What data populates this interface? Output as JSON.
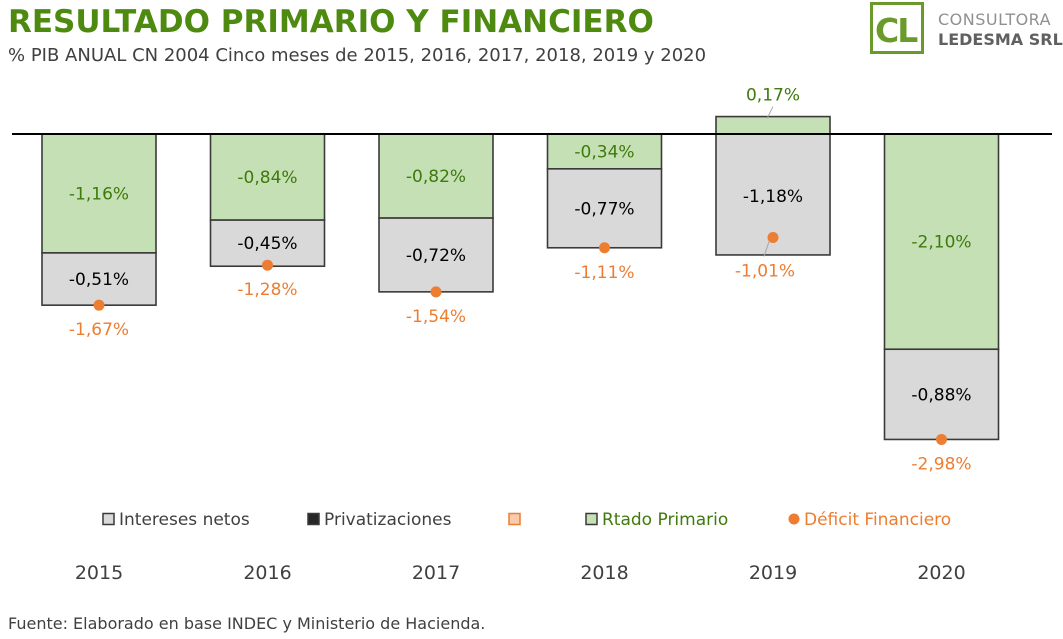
{
  "header": {
    "title": "RESULTADO PRIMARIO Y FINANCIERO",
    "subtitle": "% PIB ANUAL CN 2004  Cinco meses de 2015, 2016, 2017, 2018, 2019 y 2020"
  },
  "logo": {
    "mark": "CL",
    "line1": "CONSULTORA",
    "line2": "LEDESMA SRL"
  },
  "footer": {
    "source": "Fuente: Elaborado en base INDEC y Ministerio de Hacienda."
  },
  "colors": {
    "primario_fill": "#c5e0b4",
    "primario_stroke": "#3a3a3a",
    "primario_text": "#3e7a0c",
    "intereses_fill": "#d9d9d9",
    "privatizaciones_fill": "#262626",
    "deficit": "#ed7d31",
    "axis": "#000000",
    "category_text": "#404040"
  },
  "chart_data": {
    "type": "bar",
    "stacked": true,
    "categories": [
      "2015",
      "2016",
      "2017",
      "2018",
      "2019",
      "2020"
    ],
    "series": [
      {
        "name": "Rtado Primario",
        "kind": "bar",
        "values": [
          -1.16,
          -0.84,
          -0.82,
          -0.34,
          0.17,
          -2.1
        ],
        "labels": [
          "-1,16%",
          "-0,84%",
          "-0,82%",
          "-0,34%",
          "0,17%",
          "-2,10%"
        ]
      },
      {
        "name": "Intereses netos",
        "kind": "bar",
        "values": [
          -0.51,
          -0.45,
          -0.72,
          -0.77,
          -1.18,
          -0.88
        ],
        "labels": [
          "-0,51%",
          "-0,45%",
          "-0,72%",
          "-0,77%",
          "-1,18%",
          "-0,88%"
        ]
      },
      {
        "name": "Privatizaciones",
        "kind": "bar",
        "values": [
          0,
          0,
          0,
          0,
          0,
          0
        ]
      },
      {
        "name": "Déficit Financiero",
        "kind": "point",
        "values": [
          -1.67,
          -1.28,
          -1.54,
          -1.11,
          -1.01,
          -2.98
        ],
        "labels": [
          "-1,67%",
          "-1,28%",
          "-1,54%",
          "-1,11%",
          "-1,01%",
          "-2,98%"
        ]
      }
    ],
    "legend": [
      {
        "label": "Intereses netos",
        "swatch": "intereses"
      },
      {
        "label": "Privatizaciones",
        "swatch": "privatizaciones"
      },
      {
        "label": "",
        "swatch": "empty-orange"
      },
      {
        "label": "Rtado Primario",
        "swatch": "primario"
      },
      {
        "label": "Déficit Financiero",
        "swatch": "deficit"
      }
    ],
    "legend_position": "bottom",
    "ylim": [
      -2.98,
      0.17
    ],
    "grid": false
  }
}
